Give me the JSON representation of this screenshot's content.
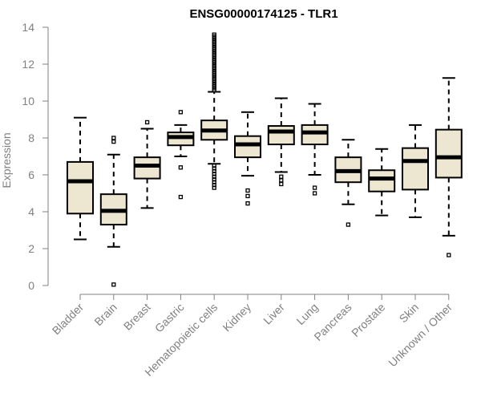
{
  "chart_data": {
    "type": "boxplot",
    "title": "ENSG00000174125 - TLR1",
    "xlabel": "",
    "ylabel": "Expression",
    "ylim": [
      0,
      14
    ],
    "yticks": [
      0,
      2,
      4,
      6,
      8,
      10,
      12,
      14
    ],
    "box_fill": "#ede6d0",
    "stroke": "#000000",
    "axis_color": "#808080",
    "categories": [
      "Bladder",
      "Brain",
      "Breast",
      "Gastric",
      "Hematopoietic cells",
      "Kidney",
      "Liver",
      "Lung",
      "Pancreas",
      "Prostate",
      "Skin",
      "Unknown / Other"
    ],
    "boxes": [
      {
        "name": "Bladder",
        "whisker_low": 2.5,
        "q1": 3.9,
        "median": 5.65,
        "q3": 6.7,
        "whisker_high": 9.1,
        "outliers": []
      },
      {
        "name": "Brain",
        "whisker_low": 2.1,
        "q1": 3.3,
        "median": 4.05,
        "q3": 4.95,
        "whisker_high": 7.1,
        "outliers": [
          0.05,
          7.8,
          8.0
        ]
      },
      {
        "name": "Breast",
        "whisker_low": 4.2,
        "q1": 5.8,
        "median": 6.5,
        "q3": 6.95,
        "whisker_high": 8.5,
        "outliers": [
          8.85
        ]
      },
      {
        "name": "Gastric",
        "whisker_low": 7.0,
        "q1": 7.6,
        "median": 8.05,
        "q3": 8.3,
        "whisker_high": 8.7,
        "outliers": [
          4.8,
          6.4,
          9.4
        ]
      },
      {
        "name": "Hematopoietic cells",
        "whisker_low": 6.6,
        "q1": 7.9,
        "median": 8.4,
        "q3": 8.95,
        "whisker_high": 10.5,
        "outliers": [
          5.3,
          5.45,
          5.6,
          5.75,
          5.9,
          6.05,
          6.2,
          6.35,
          6.5,
          10.6,
          10.7,
          10.8,
          10.9,
          11.0,
          11.1,
          11.2,
          11.3,
          11.4,
          11.5,
          11.6,
          11.7,
          11.8,
          11.9,
          12.0,
          12.1,
          12.2,
          12.3,
          12.4,
          12.5,
          12.6,
          12.7,
          12.8,
          12.9,
          13.0,
          13.1,
          13.2,
          13.3,
          13.4,
          13.5,
          13.6
        ]
      },
      {
        "name": "Kidney",
        "whisker_low": 5.95,
        "q1": 6.95,
        "median": 7.65,
        "q3": 8.1,
        "whisker_high": 9.4,
        "outliers": [
          4.45,
          4.85,
          5.15
        ]
      },
      {
        "name": "Liver",
        "whisker_low": 6.15,
        "q1": 7.65,
        "median": 8.35,
        "q3": 8.65,
        "whisker_high": 10.15,
        "outliers": [
          5.5,
          5.7,
          5.9
        ]
      },
      {
        "name": "Lung",
        "whisker_low": 6.0,
        "q1": 7.65,
        "median": 8.3,
        "q3": 8.7,
        "whisker_high": 9.85,
        "outliers": [
          5.0,
          5.3
        ]
      },
      {
        "name": "Pancreas",
        "whisker_low": 4.4,
        "q1": 5.6,
        "median": 6.2,
        "q3": 6.95,
        "whisker_high": 7.9,
        "outliers": [
          3.3
        ]
      },
      {
        "name": "Prostate",
        "whisker_low": 3.8,
        "q1": 5.1,
        "median": 5.8,
        "q3": 6.25,
        "whisker_high": 7.4,
        "outliers": []
      },
      {
        "name": "Skin",
        "whisker_low": 3.7,
        "q1": 5.2,
        "median": 6.75,
        "q3": 7.45,
        "whisker_high": 8.7,
        "outliers": []
      },
      {
        "name": "Unknown / Other",
        "whisker_low": 2.7,
        "q1": 5.85,
        "median": 6.95,
        "q3": 8.45,
        "whisker_high": 11.25,
        "outliers": [
          1.65
        ]
      }
    ]
  }
}
